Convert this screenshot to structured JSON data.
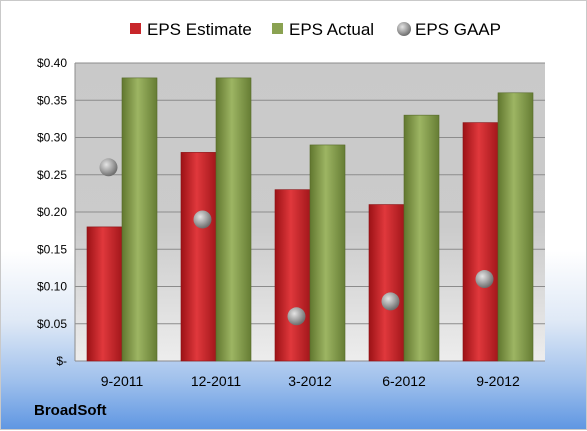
{
  "company": "BroadSoft",
  "chart_data": {
    "type": "bar",
    "categories": [
      "9-2011",
      "12-2011",
      "3-2012",
      "6-2012",
      "9-2012"
    ],
    "series": [
      {
        "name": "EPS Estimate",
        "kind": "bar",
        "color": "#c8262a",
        "values": [
          0.18,
          0.28,
          0.23,
          0.21,
          0.32
        ]
      },
      {
        "name": "EPS Actual",
        "kind": "bar",
        "color": "#8aa251",
        "values": [
          0.38,
          0.38,
          0.29,
          0.33,
          0.36
        ]
      },
      {
        "name": "EPS GAAP",
        "kind": "marker",
        "color": "#a9a9a9",
        "values": [
          0.26,
          0.19,
          0.06,
          0.08,
          0.11
        ]
      }
    ],
    "y_ticks": [
      {
        "value": 0,
        "label": "$-"
      },
      {
        "value": 0.05,
        "label": "$0.05"
      },
      {
        "value": 0.1,
        "label": "$0.10"
      },
      {
        "value": 0.15,
        "label": "$0.15"
      },
      {
        "value": 0.2,
        "label": "$0.20"
      },
      {
        "value": 0.25,
        "label": "$0.25"
      },
      {
        "value": 0.3,
        "label": "$0.30"
      },
      {
        "value": 0.35,
        "label": "$0.35"
      },
      {
        "value": 0.4,
        "label": "$0.40"
      }
    ],
    "ylim": [
      0,
      0.4
    ],
    "grid": true,
    "legend": "top"
  }
}
